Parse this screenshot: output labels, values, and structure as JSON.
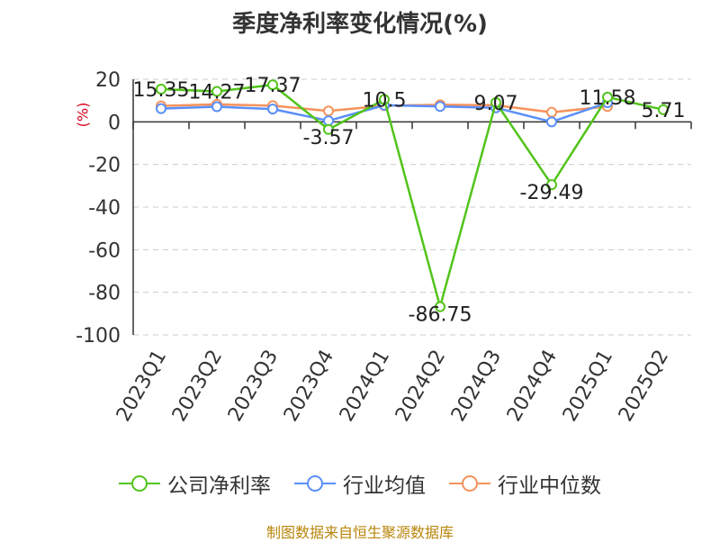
{
  "chart_data": {
    "type": "line",
    "title": "季度净利率变化情况(%)",
    "ylabel": "(%)",
    "ylim": [
      -100,
      20
    ],
    "yticks": [
      20,
      0,
      -20,
      -40,
      -60,
      -80,
      -100
    ],
    "grid": true,
    "legend_position": "bottom",
    "categories": [
      "2023Q1",
      "2023Q2",
      "2023Q3",
      "2023Q4",
      "2024Q1",
      "2024Q2",
      "2024Q3",
      "2024Q4",
      "2025Q1",
      "2025Q2"
    ],
    "series": [
      {
        "name": "公司净利率",
        "color": "#52c41a",
        "values": [
          15.35,
          14.27,
          17.37,
          -3.57,
          10.5,
          -86.75,
          9.07,
          -29.49,
          11.58,
          5.71
        ],
        "labels": [
          "15.35",
          "14.27",
          "17.37",
          "-3.57",
          "10.5",
          "-86.75",
          "9.07",
          "-29.49",
          "11.58",
          "5.71"
        ]
      },
      {
        "name": "行业均值",
        "color": "#5b8ff9",
        "values": [
          6.2,
          7.1,
          6.0,
          0.5,
          7.8,
          7.2,
          6.6,
          0.0,
          9.0,
          null
        ]
      },
      {
        "name": "行业中位数",
        "color": "#f6925b",
        "values": [
          7.5,
          8.2,
          7.6,
          5.1,
          7.6,
          8.0,
          7.8,
          4.5,
          7.2,
          null
        ]
      }
    ]
  },
  "source_text": "制图数据来自恒生聚源数据库"
}
